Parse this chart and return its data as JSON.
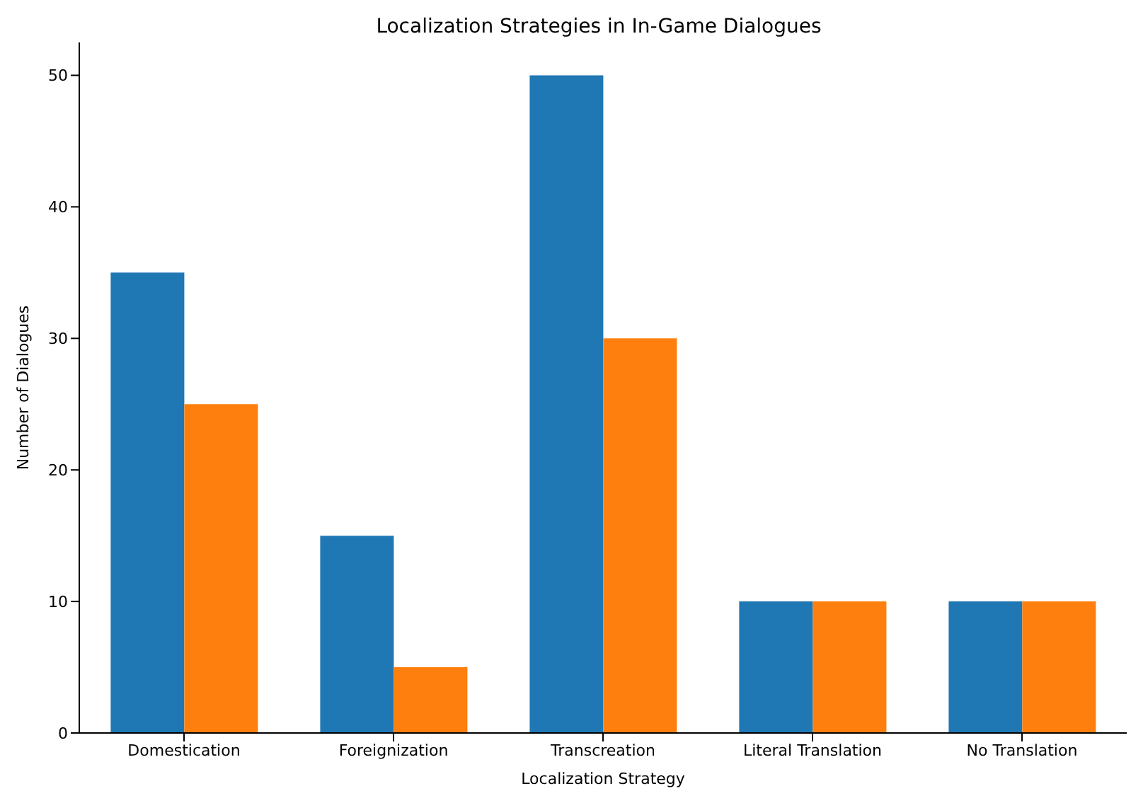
{
  "chart_data": {
    "type": "bar",
    "title": "Localization Strategies in In-Game Dialogues",
    "xlabel": "Localization Strategy",
    "ylabel": "Number of Dialogues",
    "categories": [
      "Domestication",
      "Foreignization",
      "Transcreation",
      "Literal Translation",
      "No Translation"
    ],
    "series": [
      {
        "color": "#1f77b4",
        "values": [
          35,
          15,
          50,
          10,
          10
        ]
      },
      {
        "color": "#ff7f0e",
        "values": [
          25,
          5,
          30,
          10,
          10
        ]
      }
    ],
    "ylim": [
      0,
      52.5
    ],
    "yticks": [
      0,
      10,
      20,
      30,
      40,
      50
    ],
    "grid": false,
    "legend": false
  }
}
